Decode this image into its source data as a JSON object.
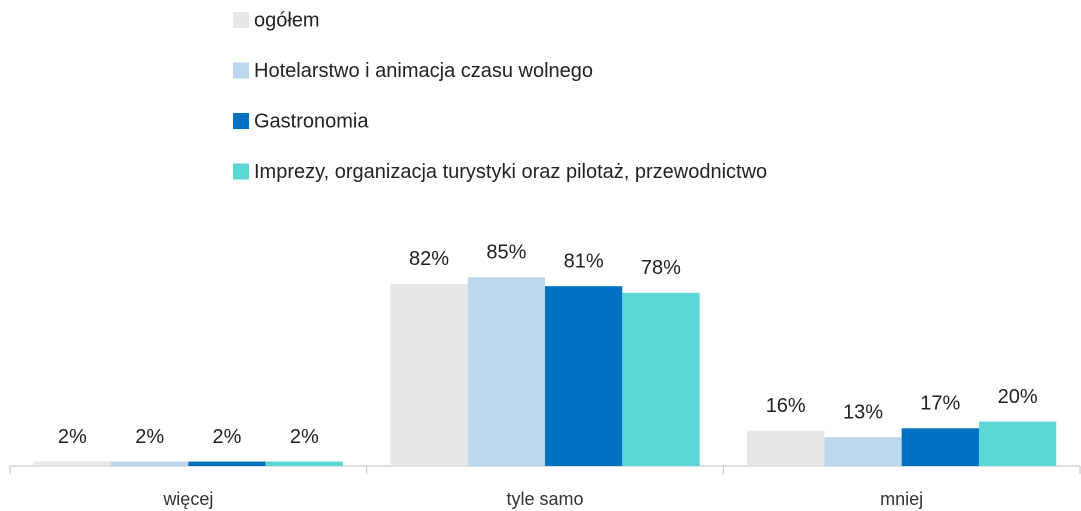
{
  "chart_data": {
    "type": "bar",
    "categories": [
      "więcej",
      "tyle samo",
      "mniej"
    ],
    "series": [
      {
        "name": "ogółem",
        "color": "#e7e7e7",
        "values": [
          2,
          82,
          16
        ],
        "value_labels": [
          "2%",
          "82%",
          "16%"
        ]
      },
      {
        "name": "Hotelarstwo i animacja czasu wolnego",
        "color": "#bdd7ee",
        "values": [
          2,
          85,
          13
        ],
        "value_labels": [
          "2%",
          "85%",
          "13%"
        ]
      },
      {
        "name": "Gastronomia",
        "color": "#0070c0",
        "values": [
          2,
          81,
          17
        ],
        "value_labels": [
          "2%",
          "81%",
          "17%"
        ]
      },
      {
        "name": "Imprezy, organizacja turystyki oraz pilotaż, przewodnictwo",
        "color": "#5bd6d6",
        "values": [
          2,
          78,
          20
        ],
        "value_labels": [
          "2%",
          "78%",
          "20%"
        ]
      }
    ],
    "legend": "top"
  }
}
